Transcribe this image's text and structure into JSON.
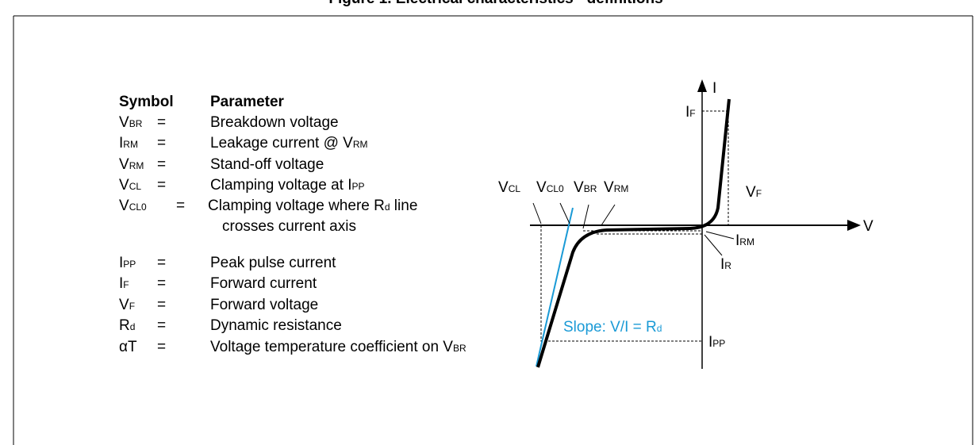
{
  "title": "Figure 1. Electrical characteristics - definitions",
  "table": {
    "header": {
      "symbol": "Symbol",
      "parameter": "Parameter"
    },
    "rows": [
      {
        "symbol": [
          "V",
          "BR"
        ],
        "eq": "=",
        "parameter": [
          "Breakdown voltage"
        ]
      },
      {
        "symbol": [
          "I",
          "RM"
        ],
        "eq": "=",
        "parameter": [
          "Leakage current @ V",
          "RM"
        ]
      },
      {
        "symbol": [
          "V",
          "RM"
        ],
        "eq": "=",
        "parameter": [
          "Stand-off voltage"
        ]
      },
      {
        "symbol": [
          "V",
          "CL"
        ],
        "eq": "=",
        "parameter": [
          "Clamping voltage at I",
          "PP"
        ]
      },
      {
        "symbol": [
          "V",
          "CL0"
        ],
        "eq": "=",
        "parameter": [
          "Clamping voltage where R",
          "d",
          " line"
        ],
        "parameter_line2": "crosses current axis"
      },
      {
        "symbol": [
          "I",
          "PP"
        ],
        "eq": "=",
        "parameter": [
          "Peak pulse current"
        ]
      },
      {
        "symbol": [
          "I",
          "F"
        ],
        "eq": "=",
        "parameter": [
          "Forward current"
        ]
      },
      {
        "symbol": [
          "V",
          "F"
        ],
        "eq": "=",
        "parameter": [
          "Forward voltage"
        ]
      },
      {
        "symbol": [
          "R",
          "d"
        ],
        "eq": "=",
        "parameter": [
          "Dynamic resistance"
        ]
      },
      {
        "symbol": [
          "αT"
        ],
        "eq": "=",
        "parameter": [
          "Voltage temperature coefficient on V",
          "BR"
        ]
      }
    ]
  },
  "diagram": {
    "axis_i": "I",
    "axis_v": "V",
    "labels": {
      "if": [
        "I",
        "F"
      ],
      "vf": [
        "V",
        "F"
      ],
      "vcl": [
        "V",
        "CL"
      ],
      "vcl0": [
        "V",
        "CL0"
      ],
      "vbr": [
        "V",
        "BR"
      ],
      "vrm": [
        "V",
        "RM"
      ],
      "irm": [
        "I",
        "RM"
      ],
      "ir": [
        "I",
        "R"
      ],
      "ipp": [
        "I",
        "PP"
      ],
      "slope": [
        "Slope: V/I = R",
        "d"
      ]
    }
  }
}
